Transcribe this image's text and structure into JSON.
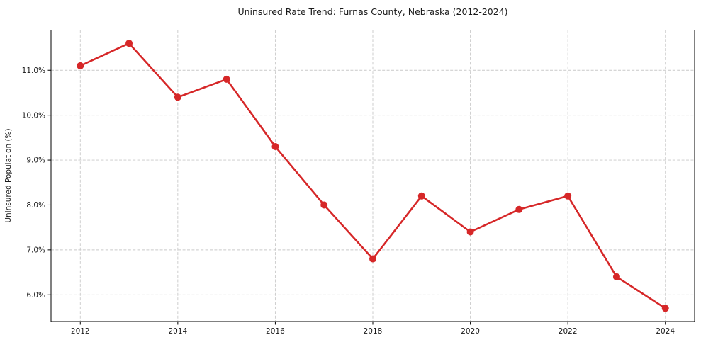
{
  "chart_data": {
    "type": "line",
    "title": "Uninsured Rate Trend: Furnas County, Nebraska (2012-2024)",
    "xlabel": "",
    "ylabel": "Uninsured Population (%)",
    "x": [
      2012,
      2013,
      2014,
      2015,
      2016,
      2017,
      2018,
      2019,
      2020,
      2021,
      2022,
      2023,
      2024
    ],
    "values": [
      11.1,
      11.6,
      10.4,
      10.8,
      9.3,
      8.0,
      6.8,
      8.2,
      7.4,
      7.9,
      8.2,
      6.4,
      5.7
    ],
    "xlim": [
      2011.4,
      2024.6
    ],
    "ylim": [
      5.405,
      11.895
    ],
    "xticks": {
      "values": [
        2012,
        2014,
        2016,
        2018,
        2020,
        2022,
        2024
      ],
      "labels": [
        "2012",
        "2014",
        "2016",
        "2018",
        "2020",
        "2022",
        "2024"
      ]
    },
    "yticks": {
      "values": [
        6,
        7,
        8,
        9,
        10,
        11
      ],
      "labels": [
        "6.0%",
        "7.0%",
        "8.0%",
        "9.0%",
        "10.0%",
        "11.0%"
      ]
    },
    "grid": "dashed both axes",
    "legend": "none",
    "colors": {
      "line": "#d62728",
      "marker": "#d62728",
      "grid": "#c9c9c9",
      "spine": "#000000",
      "text": "#1a1a1a",
      "background": "#ffffff"
    },
    "marker": "circle"
  }
}
